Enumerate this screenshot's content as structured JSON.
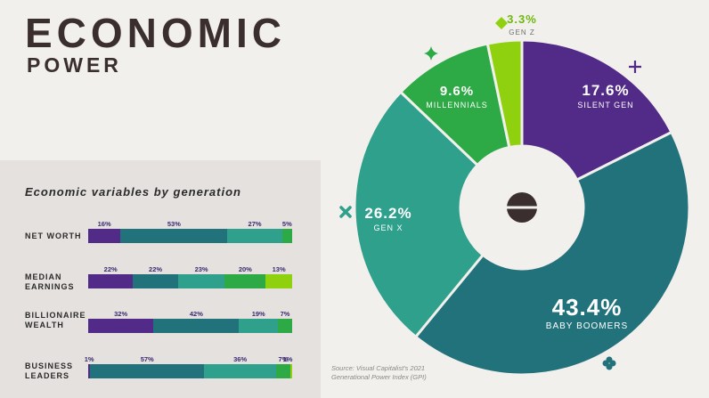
{
  "title": "ECONOMIC",
  "subtitle": "POWER",
  "panel_title": "Economic variables by generation",
  "source": [
    "Source: Visual Capitalist's 2021",
    "Generational Power Index (GPI)"
  ],
  "colors": {
    "silent": "#522a87",
    "boomers": "#22727c",
    "genx": "#2ea08c",
    "millennials": "#2daa45",
    "genz": "#8fd10f",
    "background": "#f2f0ec",
    "panel": "#e5e1de"
  },
  "chart_data": [
    {
      "type": "pie",
      "variant": "donut",
      "slices": [
        {
          "name": "SILENT GEN",
          "value": 17.6,
          "label": "17.6%",
          "color": "#522a87"
        },
        {
          "name": "BABY BOOMERS",
          "value": 43.4,
          "label": "43.4%",
          "color": "#22727c"
        },
        {
          "name": "GEN X",
          "value": 26.2,
          "label": "26.2%",
          "color": "#2ea08c"
        },
        {
          "name": "MILLENNIALS",
          "value": 9.6,
          "label": "9.6%",
          "color": "#2daa45"
        },
        {
          "name": "GEN Z",
          "value": 3.3,
          "label": "3.3%",
          "color": "#8fd10f"
        }
      ]
    },
    {
      "type": "bar",
      "stacked": true,
      "orientation": "horizontal",
      "title": "Economic variables by generation",
      "rows": [
        {
          "label": [
            "NET WORTH"
          ],
          "values": [
            16,
            53,
            27,
            5
          ],
          "labels": [
            "16%",
            "53%",
            "27%",
            "5%"
          ],
          "colors": [
            "#522a87",
            "#22727c",
            "#2ea08c",
            "#2daa45"
          ]
        },
        {
          "label": [
            "MEDIAN",
            "EARNINGS"
          ],
          "values": [
            22,
            22,
            23,
            20,
            13
          ],
          "labels": [
            "22%",
            "22%",
            "23%",
            "20%",
            "13%"
          ],
          "colors": [
            "#522a87",
            "#22727c",
            "#2ea08c",
            "#2daa45",
            "#8fd10f"
          ]
        },
        {
          "label": [
            "BILLIONAIRE",
            "WEALTH"
          ],
          "values": [
            32,
            42,
            19,
            7
          ],
          "labels": [
            "32%",
            "42%",
            "19%",
            "7%"
          ],
          "colors": [
            "#522a87",
            "#22727c",
            "#2ea08c",
            "#2daa45"
          ]
        },
        {
          "label": [
            "BUSINESS",
            "LEADERS"
          ],
          "values": [
            1,
            57,
            36,
            7,
            1
          ],
          "labels": [
            "1%",
            "57%",
            "36%",
            "7%",
            "1%"
          ],
          "colors": [
            "#522a87",
            "#22727c",
            "#2ea08c",
            "#2daa45",
            "#8fd10f"
          ]
        }
      ]
    }
  ]
}
